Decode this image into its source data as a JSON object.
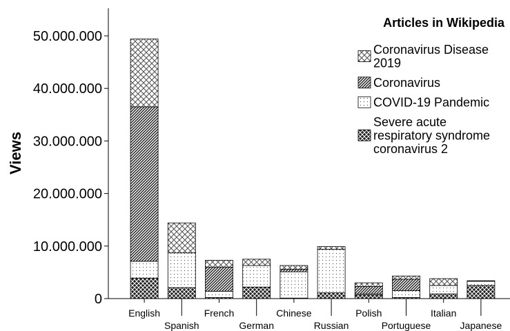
{
  "chart_data": {
    "type": "bar",
    "stacked": true,
    "ylabel": "Views",
    "ylim": [
      0,
      55000000
    ],
    "yticks": [
      0,
      10000000,
      20000000,
      30000000,
      40000000,
      50000000
    ],
    "ytick_labels": [
      "0",
      "10.000.000",
      "20.000.000",
      "30.000.000",
      "40.000.000",
      "50.000.000"
    ],
    "grid": false,
    "legend_title": "Articles in Wikipedia",
    "legend_position": "top-right",
    "categories": [
      "English",
      "Spanish",
      "French",
      "German",
      "Chinese",
      "Russian",
      "Polish",
      "Portuguese",
      "Italian",
      "Japanese"
    ],
    "series": [
      {
        "name": "Severe acute respiratory syndrome coronavirus 2",
        "legend_lines": [
          "Severe acute",
          "respiratory syndrome",
          "coronavirus 2"
        ],
        "pattern": "dark-crosshatch",
        "values": [
          3900000,
          2100000,
          200000,
          2200000,
          100000,
          1100000,
          700000,
          200000,
          900000,
          2500000
        ]
      },
      {
        "name": "COVID-19 Pandemic",
        "legend_lines": [
          "COVID-19 Pandemic"
        ],
        "pattern": "dots",
        "values": [
          3200000,
          6600000,
          1200000,
          4100000,
          5000000,
          8300000,
          200000,
          1300000,
          1600000,
          800000
        ]
      },
      {
        "name": "Coronavirus",
        "legend_lines": [
          "Coronavirus"
        ],
        "pattern": "diagonal-lines",
        "values": [
          29400000,
          0,
          4600000,
          0,
          500000,
          0,
          1400000,
          2200000,
          0,
          0
        ]
      },
      {
        "name": "Coronavirus Disease 2019",
        "legend_lines": [
          "Coronavirus Disease",
          "2019"
        ],
        "pattern": "light-crosshatch",
        "values": [
          12900000,
          5700000,
          1300000,
          1200000,
          700000,
          500000,
          700000,
          600000,
          1300000,
          100000
        ]
      }
    ]
  }
}
